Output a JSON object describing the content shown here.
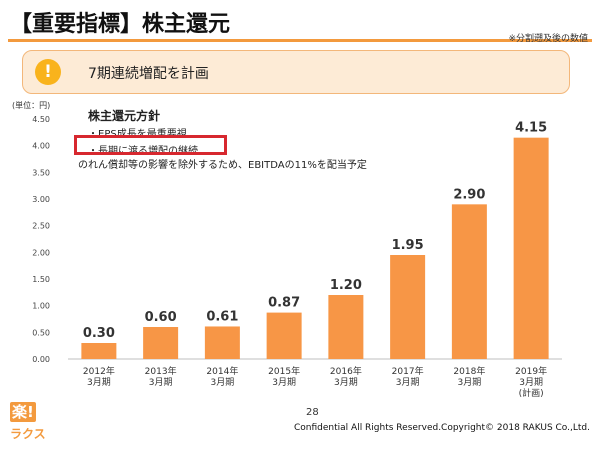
{
  "header": {
    "title": "【重要指標】株主還元",
    "note": "※分割遡及後の数値"
  },
  "banner": {
    "icon": "exclamation-icon",
    "text": "7期連続増配を計画"
  },
  "policy": {
    "heading": "株主還元方針",
    "items": [
      "・EPS成長を最重要視",
      "・長期に渡る増配の継続",
      "のれん償却等の影響を除外するため、EBITDAの11%を配当予定"
    ]
  },
  "chart_data": {
    "type": "bar",
    "unit_label": "(単位：円)",
    "categories": [
      "2012年\n3月期",
      "2013年\n3月期",
      "2014年\n3月期",
      "2015年\n3月期",
      "2016年\n3月期",
      "2017年\n3月期",
      "2018年\n3月期",
      "2019年\n3月期\n(計画)"
    ],
    "values": [
      0.3,
      0.6,
      0.61,
      0.87,
      1.2,
      1.95,
      2.9,
      4.15
    ],
    "value_labels": [
      "0.30",
      "0.60",
      "0.61",
      "0.87",
      "1.20",
      "1.95",
      "2.90",
      "4.15"
    ],
    "y_ticks": [
      "0.00",
      "0.50",
      "1.00",
      "1.50",
      "2.00",
      "2.50",
      "3.00",
      "3.50",
      "4.00",
      "4.50"
    ],
    "ylim": [
      0,
      4.5
    ],
    "grid": false,
    "bar_color": "#f79646"
  },
  "footer": {
    "page": "28",
    "copyright": "Confidential All Rights Reserved.Copyright© 2018 RAKUS Co.,Ltd.",
    "logo_mark": "楽!",
    "logo_text": "ラクス"
  },
  "colors": {
    "accent": "#f39a3e",
    "banner_bg": "#fdebd6",
    "highlight": "#d7282f",
    "warn": "#f9b31c"
  }
}
